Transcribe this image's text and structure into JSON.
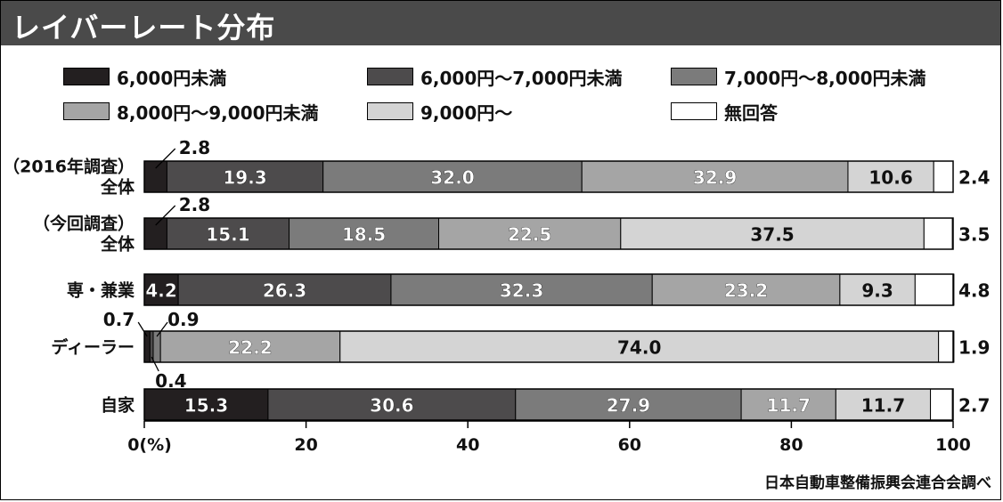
{
  "title": "レイバーレート分布",
  "source": "日本自動車整備振興会連合会調べ",
  "colors": {
    "title_bg": "#4a4a4a",
    "series": [
      "#231f20",
      "#4d4b4c",
      "#7b7b7b",
      "#a5a5a5",
      "#d4d4d4",
      "#ffffff"
    ]
  },
  "legend": [
    {
      "label": "6,000円未満"
    },
    {
      "label": "6,000円～7,000円未満"
    },
    {
      "label": "7,000円～8,000円未満"
    },
    {
      "label": "8,000円～9,000円未満"
    },
    {
      "label": "9,000円～"
    },
    {
      "label": "無回答"
    }
  ],
  "chart_data": {
    "type": "bar",
    "stacked": true,
    "orientation": "horizontal",
    "categories": [
      [
        "（2016年調査）",
        "全体"
      ],
      [
        "（今回調査）",
        "全体"
      ],
      [
        "専・兼業"
      ],
      [
        "ディーラー"
      ],
      [
        "自家"
      ]
    ],
    "series": [
      {
        "name": "6,000円未満",
        "values": [
          2.8,
          2.8,
          4.2,
          0.7,
          15.3
        ]
      },
      {
        "name": "6,000円～7,000円未満",
        "values": [
          19.3,
          15.1,
          26.3,
          0.4,
          30.6
        ]
      },
      {
        "name": "7,000円～8,000円未満",
        "values": [
          32.0,
          18.5,
          32.3,
          0.9,
          27.9
        ]
      },
      {
        "name": "8,000円～9,000円未満",
        "values": [
          32.9,
          22.5,
          23.2,
          22.2,
          11.7
        ]
      },
      {
        "name": "9,000円～",
        "values": [
          10.6,
          37.5,
          9.3,
          74.0,
          11.7
        ]
      },
      {
        "name": "無回答",
        "values": [
          2.4,
          3.5,
          4.8,
          1.9,
          2.7
        ]
      }
    ],
    "labels": [
      [
        "2.8",
        "19.3",
        "32.0",
        "32.9",
        "10.6",
        "2.4"
      ],
      [
        "2.8",
        "15.1",
        "18.5",
        "22.5",
        "37.5",
        "3.5"
      ],
      [
        "4.2",
        "26.3",
        "32.3",
        "23.2",
        "9.3",
        "4.8"
      ],
      [
        "0.7",
        "0.4",
        "0.9",
        "22.2",
        "74.0",
        "1.9"
      ],
      [
        "15.3",
        "30.6",
        "27.9",
        "11.7",
        "11.7",
        "2.7"
      ]
    ],
    "x_ticks": [
      "0(%)",
      "20",
      "40",
      "60",
      "80",
      "100"
    ],
    "xlim": [
      0,
      100
    ]
  }
}
